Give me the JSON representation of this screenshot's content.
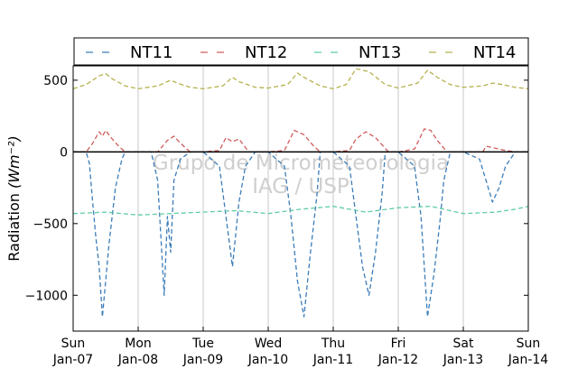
{
  "chart_data": {
    "type": "line",
    "ylabel": "Radiation",
    "ylabel_unit_html": "(Wm⁻²)",
    "ylim": [
      -1250,
      600
    ],
    "yticks": [
      500,
      0,
      -500,
      -1000
    ],
    "ytick_labels": [
      "500",
      "0",
      "−500",
      "−1000"
    ],
    "xlim_days": [
      0,
      7
    ],
    "xtick_labels": [
      {
        "day": "Sun",
        "date": "Jan-07"
      },
      {
        "day": "Mon",
        "date": "Jan-08"
      },
      {
        "day": "Tue",
        "date": "Jan-09"
      },
      {
        "day": "Wed",
        "date": "Jan-10"
      },
      {
        "day": "Thu",
        "date": "Jan-11"
      },
      {
        "day": "Fri",
        "date": "Jan-12"
      },
      {
        "day": "Sat",
        "date": "Jan-13"
      },
      {
        "day": "Sun",
        "date": "Jan-14"
      }
    ],
    "grid": "vertical",
    "legend": "top",
    "series": [
      {
        "name": "NT11",
        "color": "#3b7db8",
        "x": [
          0.0,
          0.2,
          0.25,
          0.3,
          0.35,
          0.4,
          0.45,
          0.5,
          0.55,
          0.6,
          0.65,
          0.7,
          0.75,
          0.8,
          1.0,
          1.2,
          1.3,
          1.35,
          1.4,
          1.45,
          1.5,
          1.55,
          1.65,
          1.8,
          2.0,
          2.25,
          2.35,
          2.45,
          2.55,
          2.65,
          2.8,
          3.0,
          3.25,
          3.35,
          3.45,
          3.55,
          3.65,
          3.75,
          3.8,
          4.0,
          4.25,
          4.35,
          4.45,
          4.55,
          4.65,
          4.75,
          4.8,
          5.0,
          5.25,
          5.35,
          5.45,
          5.55,
          5.6,
          5.65,
          5.7,
          5.8,
          6.0,
          6.25,
          6.35,
          6.45,
          6.55,
          6.65,
          6.8,
          7.0
        ],
        "y": [
          0,
          0,
          -80,
          -350,
          -600,
          -800,
          -1150,
          -900,
          -650,
          -450,
          -250,
          -150,
          -50,
          0,
          0,
          0,
          -200,
          -600,
          -1000,
          -450,
          -700,
          -200,
          -50,
          0,
          0,
          -100,
          -450,
          -800,
          -350,
          -100,
          0,
          0,
          -100,
          -450,
          -900,
          -1150,
          -700,
          -300,
          0,
          0,
          -100,
          -450,
          -800,
          -1000,
          -700,
          -300,
          0,
          0,
          -100,
          -450,
          -1150,
          -850,
          -650,
          -450,
          -200,
          0,
          0,
          -50,
          -200,
          -350,
          -250,
          -100,
          0,
          0
        ]
      },
      {
        "name": "NT12",
        "color": "#d05c5c",
        "x": [
          0.0,
          0.2,
          0.3,
          0.4,
          0.45,
          0.5,
          0.6,
          0.7,
          0.8,
          1.0,
          1.3,
          1.45,
          1.55,
          1.65,
          1.8,
          2.0,
          2.25,
          2.35,
          2.45,
          2.55,
          2.7,
          3.0,
          3.25,
          3.4,
          3.55,
          3.7,
          3.8,
          4.0,
          4.25,
          4.35,
          4.5,
          4.65,
          4.75,
          4.85,
          5.0,
          5.25,
          5.4,
          5.5,
          5.6,
          5.75,
          6.0,
          6.3,
          6.35,
          6.45,
          6.55,
          6.65,
          6.8,
          7.0
        ],
        "y": [
          0,
          0,
          60,
          140,
          110,
          150,
          90,
          40,
          0,
          0,
          0,
          80,
          110,
          60,
          0,
          0,
          10,
          100,
          70,
          90,
          0,
          0,
          10,
          150,
          120,
          40,
          0,
          0,
          10,
          90,
          140,
          100,
          50,
          0,
          0,
          20,
          160,
          150,
          80,
          0,
          0,
          0,
          40,
          30,
          20,
          10,
          0,
          0
        ]
      },
      {
        "name": "NT13",
        "color": "#5fcca5",
        "x": [
          0.0,
          0.5,
          1.0,
          1.5,
          2.0,
          2.5,
          3.0,
          3.5,
          4.0,
          4.5,
          5.0,
          5.5,
          6.0,
          6.5,
          6.8,
          7.0
        ],
        "y": [
          -430,
          -420,
          -440,
          -430,
          -420,
          -410,
          -430,
          -400,
          -380,
          -420,
          -390,
          -380,
          -430,
          -420,
          -400,
          -380
        ]
      },
      {
        "name": "NT14",
        "color": "#b5b24d",
        "x": [
          0.0,
          0.2,
          0.4,
          0.5,
          0.6,
          0.8,
          1.0,
          1.3,
          1.5,
          1.6,
          1.8,
          2.0,
          2.3,
          2.45,
          2.55,
          2.8,
          3.0,
          3.3,
          3.45,
          3.55,
          3.8,
          4.0,
          4.2,
          4.35,
          4.55,
          4.8,
          5.0,
          5.3,
          5.45,
          5.6,
          5.8,
          6.0,
          6.3,
          6.45,
          6.6,
          6.8,
          7.0
        ],
        "y": [
          440,
          470,
          530,
          545,
          510,
          460,
          440,
          460,
          500,
          480,
          450,
          440,
          460,
          520,
          490,
          450,
          445,
          470,
          550,
          520,
          460,
          440,
          470,
          580,
          560,
          470,
          445,
          480,
          570,
          520,
          470,
          450,
          460,
          480,
          470,
          450,
          440
        ]
      }
    ],
    "watermark": {
      "line1": "Grupo de Micrometeorologia",
      "line2": "IAG / USP"
    }
  }
}
